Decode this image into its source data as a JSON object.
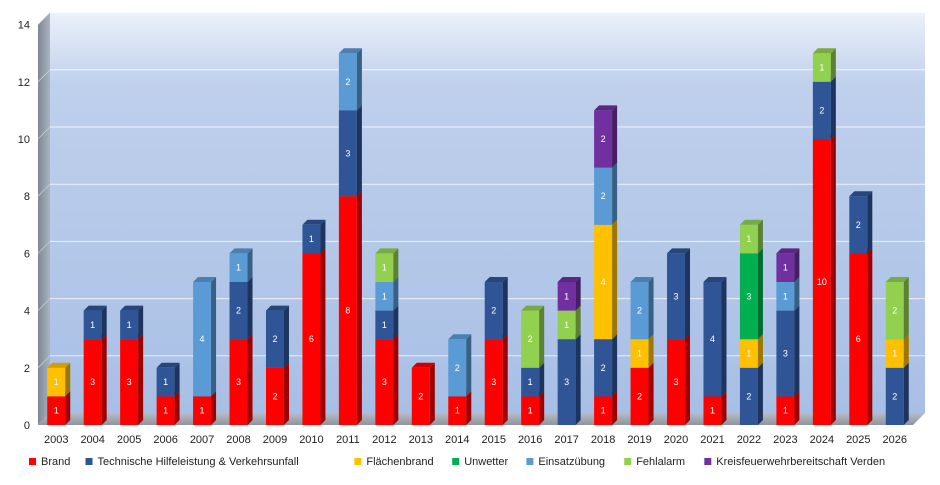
{
  "chart_data": {
    "type": "bar",
    "stacked": true,
    "categories": [
      "2003",
      "2004",
      "2005",
      "2006",
      "2007",
      "2008",
      "2009",
      "2010",
      "2011",
      "2012",
      "2013",
      "2014",
      "2015",
      "2016",
      "2017",
      "2018",
      "2019",
      "2020",
      "2021",
      "2022",
      "2023",
      "2024",
      "2025",
      "2026"
    ],
    "ylim": [
      0,
      14
    ],
    "yticks": [
      0,
      2,
      4,
      6,
      8,
      10,
      12,
      14
    ],
    "grid": true,
    "legend_position": "bottom",
    "series": [
      {
        "name": "Brand",
        "color": "#FF0000",
        "values": [
          1,
          3,
          3,
          1,
          1,
          3,
          2,
          6,
          8,
          3,
          2,
          1,
          3,
          1,
          0,
          1,
          2,
          3,
          1,
          0,
          1,
          10,
          6,
          0
        ]
      },
      {
        "name": "Technische Hilfeleistung & Verkehrsunfall",
        "color": "#2F5597",
        "values": [
          0,
          1,
          1,
          1,
          0,
          2,
          2,
          1,
          3,
          1,
          0,
          0,
          2,
          1,
          3,
          2,
          0,
          3,
          4,
          2,
          3,
          2,
          2,
          2
        ]
      },
      {
        "name": "Flächenbrand",
        "color": "#FFC000",
        "values": [
          1,
          0,
          0,
          0,
          0,
          0,
          0,
          0,
          0,
          0,
          0,
          0,
          0,
          0,
          0,
          4,
          1,
          0,
          0,
          1,
          0,
          0,
          0,
          1
        ]
      },
      {
        "name": "Unwetter",
        "color": "#00B050",
        "values": [
          0,
          0,
          0,
          0,
          0,
          0,
          0,
          0,
          0,
          0,
          0,
          0,
          0,
          0,
          0,
          0,
          0,
          0,
          0,
          3,
          0,
          0,
          0,
          0
        ]
      },
      {
        "name": "Einsatzübung",
        "color": "#5B9BD5",
        "values": [
          0,
          0,
          0,
          0,
          4,
          1,
          0,
          0,
          2,
          1,
          0,
          2,
          0,
          0,
          0,
          2,
          2,
          0,
          0,
          0,
          1,
          0,
          0,
          0
        ]
      },
      {
        "name": "Fehlalarm",
        "color": "#92D050",
        "values": [
          0,
          0,
          0,
          0,
          0,
          0,
          0,
          0,
          0,
          1,
          0,
          0,
          0,
          2,
          1,
          0,
          0,
          0,
          0,
          1,
          0,
          1,
          0,
          2
        ]
      },
      {
        "name": "Kreisfeuerwehrbereitschaft Verden",
        "color": "#7030A0",
        "values": [
          0,
          0,
          0,
          0,
          0,
          0,
          0,
          0,
          0,
          0,
          0,
          0,
          0,
          0,
          1,
          2,
          0,
          0,
          0,
          0,
          1,
          0,
          0,
          0
        ]
      }
    ]
  }
}
